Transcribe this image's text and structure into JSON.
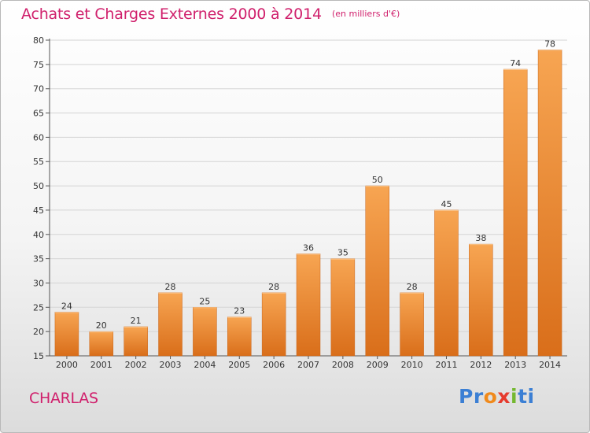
{
  "title": "Achats et Charges Externes 2000 à 2014",
  "unit": "(en milliers d'€)",
  "place": "CHARLAS",
  "logo": {
    "text": "Proxiti",
    "parts": [
      "Pr",
      "o",
      "x",
      "i",
      "ti"
    ]
  },
  "colors": {
    "title": "#d0206c",
    "bar_light": "#f7a552",
    "bar_dark": "#d96e1a",
    "grid": "#d4d4d4"
  },
  "chart_data": {
    "type": "bar",
    "categories": [
      "2000",
      "2001",
      "2002",
      "2003",
      "2004",
      "2005",
      "2006",
      "2007",
      "2008",
      "2009",
      "2010",
      "2011",
      "2012",
      "2013",
      "2014"
    ],
    "values": [
      24,
      20,
      21,
      28,
      25,
      23,
      28,
      36,
      35,
      50,
      28,
      45,
      38,
      74,
      78
    ],
    "ylim": [
      15,
      80
    ],
    "yticks": [
      15,
      20,
      25,
      30,
      35,
      40,
      45,
      50,
      55,
      60,
      65,
      70,
      75,
      80
    ],
    "grid": true,
    "legend": "none"
  }
}
